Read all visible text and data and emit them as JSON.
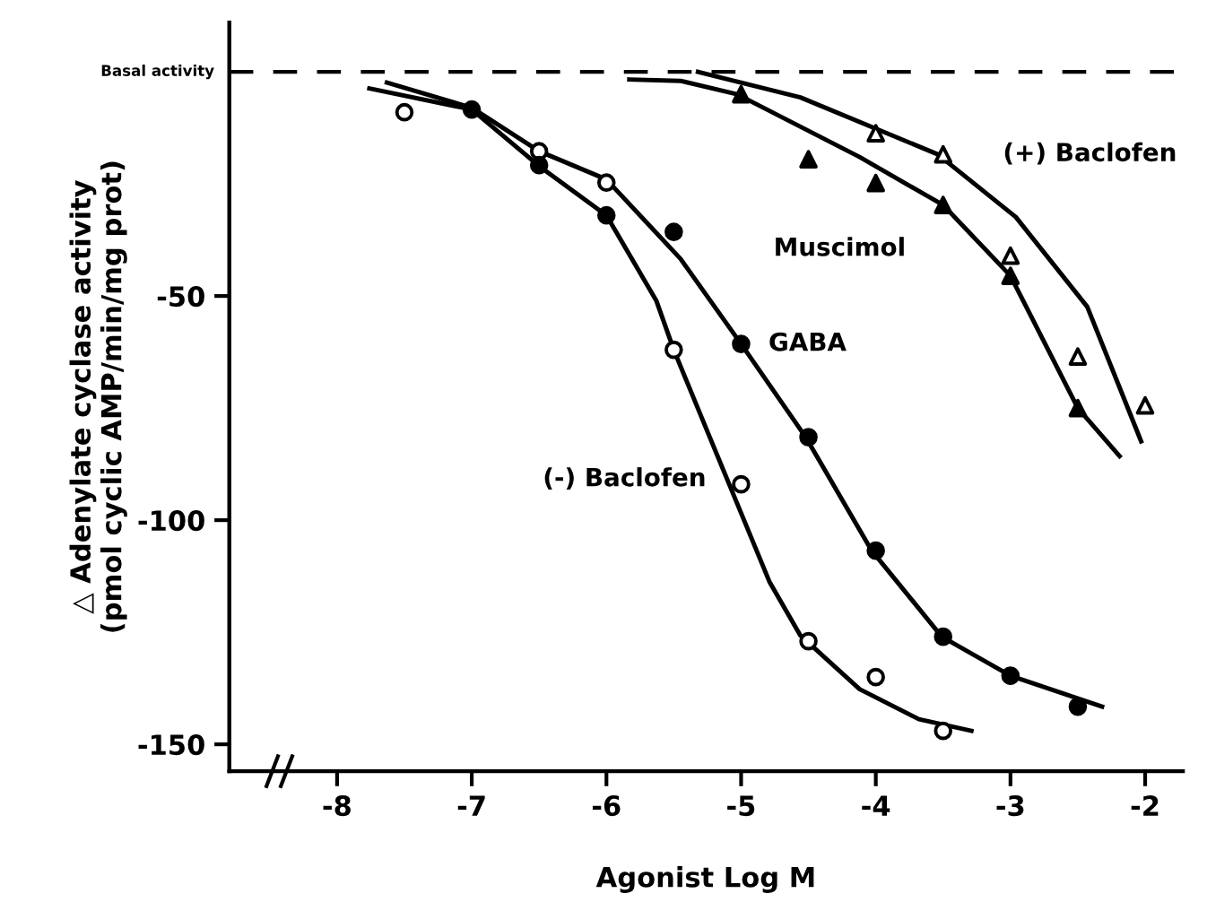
{
  "chart_data": {
    "type": "scatter",
    "xlabel": "Agonist Log M",
    "ylabel": "△ Adenylate cyclase activity\n(pmol cyclic AMP/min/mg prot)",
    "xlim": [
      -8.8,
      -1.72
    ],
    "ylim": [
      -156,
      11
    ],
    "xticks": [
      -8,
      -7,
      -6,
      -5,
      -4,
      -3,
      -2
    ],
    "yticks": [
      -50,
      -100,
      -150
    ],
    "grid": false,
    "legend": false,
    "ref_lines": [
      {
        "axis": "y",
        "value": 0,
        "label": "Basal activity",
        "color": "#000000",
        "line_style": "dashed"
      }
    ],
    "series": [
      {
        "name": "(-) Baclofen",
        "marker": "circle",
        "color": "#ffffff",
        "x": [
          -7.5,
          -6.5,
          -6,
          -5.5,
          -5,
          -4.5,
          -4,
          -3.5
        ],
        "values": [
          -9,
          -17.7,
          -24.7,
          -62,
          -92,
          -127,
          -135,
          -147
        ]
      },
      {
        "name": "GABA",
        "marker": "circle",
        "color": "#000000",
        "x": [
          -7,
          -6.5,
          -6,
          -5.5,
          -5,
          -4.5,
          -4,
          -3.5,
          -3,
          -2.5
        ],
        "values": [
          -8.4,
          -20.8,
          -32,
          -35.7,
          -60.7,
          -81.5,
          -106.8,
          -126,
          -134.7,
          -141.6
        ]
      },
      {
        "name": "Muscimol",
        "marker": "triangle",
        "color": "#000000",
        "x": [
          -5,
          -4.5,
          -4,
          -3.5,
          -3,
          -2.5
        ],
        "values": [
          -5,
          -19.5,
          -24.8,
          -29.7,
          -45.5,
          -75
        ]
      },
      {
        "name": "(+) Baclofen",
        "marker": "triangle",
        "color": "#ffffff",
        "x": [
          -4,
          -3.5,
          -3,
          -2.5,
          -2
        ],
        "values": [
          -13.7,
          -18.4,
          -41,
          -63.5,
          -74.4
        ]
      },
      {
        "type": "line",
        "color": "#000000",
        "x": [
          -7.76,
          -7,
          -6.5,
          -6,
          -5.63,
          -5.5,
          -5.23,
          -5.01,
          -4.79,
          -4.56,
          -4.12,
          -3.68,
          -3.29
        ],
        "values": [
          -3.7,
          -8.4,
          -21,
          -32,
          -51,
          -62,
          -81.7,
          -97.7,
          -113.7,
          -125.7,
          -137.7,
          -144.4,
          -147
        ]
      },
      {
        "type": "line",
        "color": "#000000",
        "x": [
          -7.63,
          -7,
          -6.5,
          -6,
          -5.45,
          -5,
          -4.52,
          -4.03,
          -3.51,
          -3,
          -2.32
        ],
        "values": [
          -2.4,
          -8,
          -17.7,
          -24,
          -41.7,
          -60.7,
          -81.5,
          -106.8,
          -126,
          -134.7,
          -141.6
        ]
      },
      {
        "type": "line",
        "color": "#000000",
        "x": [
          -5.83,
          -5.45,
          -5.03,
          -4.12,
          -3.5,
          -3,
          -2.5,
          -2.19
        ],
        "values": [
          -1.7,
          -2,
          -5,
          -19,
          -29.7,
          -45.5,
          -75,
          -85.7
        ]
      },
      {
        "type": "line",
        "color": "#000000",
        "x": [
          -5.32,
          -4.56,
          -3.54,
          -2.96,
          -2.43,
          -2.03
        ],
        "values": [
          0,
          -5.7,
          -18.4,
          -32.4,
          -52.4,
          -82.4
        ]
      }
    ]
  }
}
